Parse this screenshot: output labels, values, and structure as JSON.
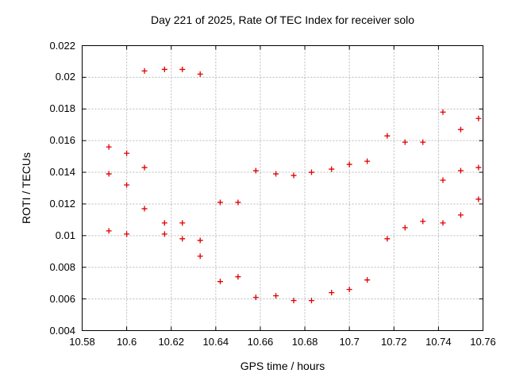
{
  "chart_data": {
    "type": "scatter",
    "title": "Day 221 of 2025, Rate Of TEC Index for receiver solo",
    "xlabel": "GPS time / hours",
    "ylabel": "ROTI / TECUs",
    "xlim": [
      10.58,
      10.76
    ],
    "ylim": [
      0.004,
      0.022
    ],
    "grid": true,
    "legend_position": "none",
    "marker_shape": "plus",
    "colors": {
      "marker": "#e00000",
      "grid": "#b9b9b9",
      "axis": "#000000",
      "background": "#ffffff",
      "text": "#000000"
    },
    "x_ticks": [
      {
        "value": 10.58,
        "label": "10.58"
      },
      {
        "value": 10.6,
        "label": "10.6"
      },
      {
        "value": 10.62,
        "label": "10.62"
      },
      {
        "value": 10.64,
        "label": "10.64"
      },
      {
        "value": 10.66,
        "label": "10.66"
      },
      {
        "value": 10.68,
        "label": "10.68"
      },
      {
        "value": 10.7,
        "label": "10.7"
      },
      {
        "value": 10.72,
        "label": "10.72"
      },
      {
        "value": 10.74,
        "label": "10.74"
      },
      {
        "value": 10.76,
        "label": "10.76"
      }
    ],
    "y_ticks": [
      {
        "value": 0.004,
        "label": "0.004"
      },
      {
        "value": 0.006,
        "label": "0.006"
      },
      {
        "value": 0.008,
        "label": "0.008"
      },
      {
        "value": 0.01,
        "label": "0.01"
      },
      {
        "value": 0.012,
        "label": "0.012"
      },
      {
        "value": 0.014,
        "label": "0.014"
      },
      {
        "value": 0.016,
        "label": "0.016"
      },
      {
        "value": 0.018,
        "label": "0.018"
      },
      {
        "value": 0.02,
        "label": "0.02"
      },
      {
        "value": 0.022,
        "label": "0.022"
      }
    ],
    "series": [
      {
        "name": "ROTI",
        "points": [
          [
            10.592,
            0.0156
          ],
          [
            10.592,
            0.0139
          ],
          [
            10.592,
            0.0103
          ],
          [
            10.6,
            0.0152
          ],
          [
            10.6,
            0.0132
          ],
          [
            10.6,
            0.0101
          ],
          [
            10.608,
            0.0204
          ],
          [
            10.608,
            0.0143
          ],
          [
            10.608,
            0.0117
          ],
          [
            10.617,
            0.0205
          ],
          [
            10.617,
            0.0108
          ],
          [
            10.617,
            0.0101
          ],
          [
            10.625,
            0.0205
          ],
          [
            10.625,
            0.0108
          ],
          [
            10.625,
            0.0098
          ],
          [
            10.633,
            0.0202
          ],
          [
            10.633,
            0.0097
          ],
          [
            10.633,
            0.0087
          ],
          [
            10.642,
            0.0121
          ],
          [
            10.642,
            0.0071
          ],
          [
            10.65,
            0.0121
          ],
          [
            10.65,
            0.0074
          ],
          [
            10.658,
            0.0141
          ],
          [
            10.658,
            0.0061
          ],
          [
            10.667,
            0.0139
          ],
          [
            10.667,
            0.0062
          ],
          [
            10.675,
            0.0138
          ],
          [
            10.675,
            0.0059
          ],
          [
            10.683,
            0.014
          ],
          [
            10.683,
            0.0059
          ],
          [
            10.692,
            0.0142
          ],
          [
            10.692,
            0.0064
          ],
          [
            10.7,
            0.0145
          ],
          [
            10.7,
            0.0066
          ],
          [
            10.708,
            0.0147
          ],
          [
            10.708,
            0.0072
          ],
          [
            10.717,
            0.0163
          ],
          [
            10.717,
            0.0098
          ],
          [
            10.725,
            0.0159
          ],
          [
            10.725,
            0.0105
          ],
          [
            10.733,
            0.0159
          ],
          [
            10.733,
            0.0109
          ],
          [
            10.742,
            0.0178
          ],
          [
            10.742,
            0.0135
          ],
          [
            10.742,
            0.0108
          ],
          [
            10.75,
            0.0167
          ],
          [
            10.75,
            0.0141
          ],
          [
            10.75,
            0.0113
          ],
          [
            10.758,
            0.0174
          ],
          [
            10.758,
            0.0143
          ],
          [
            10.758,
            0.0123
          ]
        ]
      }
    ]
  }
}
